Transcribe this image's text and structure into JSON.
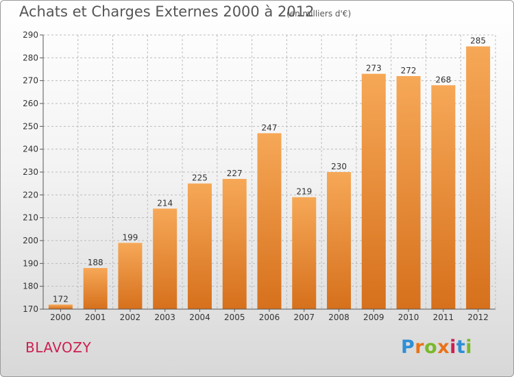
{
  "title": "Achats et Charges Externes 2000 à 2012",
  "unit": "(en milliers d'€)",
  "place": "BLAVOZY",
  "logo": {
    "text": "Proxiti",
    "letter_colors": [
      "#2e8fd6",
      "#e8731a",
      "#7ab82a",
      "#e8731a",
      "#cc1f4f",
      "#2e8fd6",
      "#7ab82a"
    ]
  },
  "colors": {
    "bar_top": "#f6a857",
    "bar_bottom": "#d6701c",
    "grid": "#bbbbbb",
    "axis": "#555555"
  },
  "chart_data": {
    "type": "bar",
    "title": "Achats et Charges Externes 2000 à 2012",
    "xlabel": "",
    "ylabel": "",
    "categories": [
      "2000",
      "2001",
      "2002",
      "2003",
      "2004",
      "2005",
      "2006",
      "2007",
      "2008",
      "2009",
      "2010",
      "2011",
      "2012"
    ],
    "values": [
      172,
      188,
      199,
      214,
      225,
      227,
      247,
      219,
      230,
      273,
      272,
      268,
      285
    ],
    "ylim": [
      170,
      290
    ],
    "yticks": [
      170,
      180,
      190,
      200,
      210,
      220,
      230,
      240,
      250,
      260,
      270,
      280,
      290
    ],
    "grid": true
  }
}
